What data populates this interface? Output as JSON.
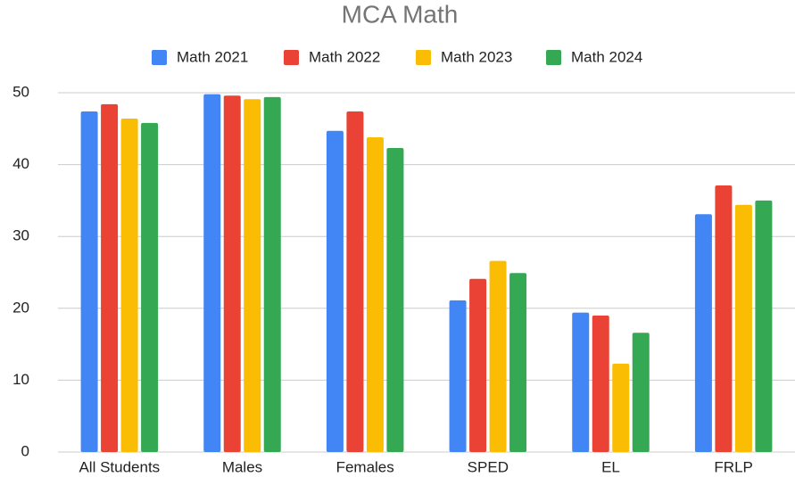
{
  "chart_data": {
    "type": "bar",
    "title": "MCA Math",
    "categories": [
      "All Students",
      "Males",
      "Females",
      "SPED",
      "EL",
      "FRLP"
    ],
    "series": [
      {
        "name": "Math 2021",
        "color": "#4285f4",
        "values": [
          47.4,
          49.8,
          44.7,
          21.1,
          19.4,
          33.1
        ]
      },
      {
        "name": "Math 2022",
        "color": "#ea4335",
        "values": [
          48.4,
          49.6,
          47.4,
          24.1,
          19.0,
          37.1
        ]
      },
      {
        "name": "Math 2023",
        "color": "#fbbc04",
        "values": [
          46.4,
          49.1,
          43.8,
          26.6,
          12.3,
          34.4
        ]
      },
      {
        "name": "Math 2024",
        "color": "#34a853",
        "values": [
          45.8,
          49.4,
          42.3,
          24.9,
          16.6,
          35.0
        ]
      }
    ],
    "ylim": [
      0,
      50
    ],
    "yticks": [
      0,
      10,
      20,
      30,
      40,
      50
    ],
    "grid": true,
    "legend": "top"
  }
}
